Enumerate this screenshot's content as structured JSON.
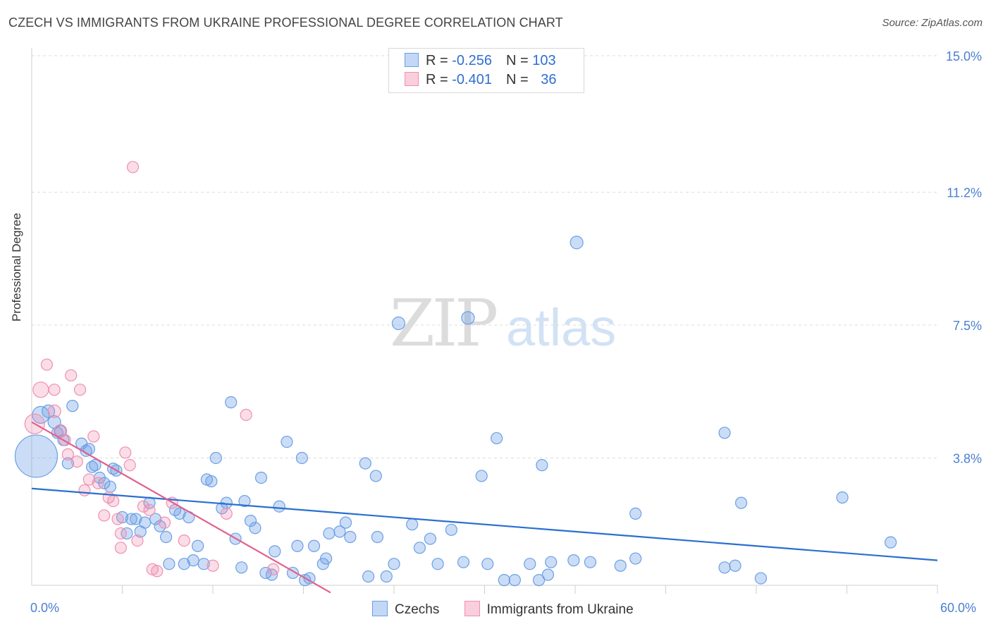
{
  "title": "CZECH VS IMMIGRANTS FROM UKRAINE PROFESSIONAL DEGREE CORRELATION CHART",
  "source": "Source: ZipAtlas.com",
  "watermark": {
    "zip": "ZIP",
    "atlas": "atlas"
  },
  "legend": {
    "czechs": {
      "r_label": "R = ",
      "r_value": "-0.256",
      "n_label": "N = ",
      "n_value": "103"
    },
    "ukraine": {
      "r_label": "R = ",
      "r_value": "-0.401",
      "n_label": "N = ",
      "n_value": "36"
    }
  },
  "bottom_legend": {
    "czechs": "Czechs",
    "ukraine": "Immigrants from Ukraine"
  },
  "chart_data": {
    "type": "scatter",
    "title": "CZECH VS IMMIGRANTS FROM UKRAINE PROFESSIONAL DEGREE CORRELATION CHART",
    "xlabel": "",
    "ylabel": "Professional Degree",
    "xlim": [
      0,
      60
    ],
    "ylim": [
      0,
      15
    ],
    "x_tick_labels": [
      "0.0%",
      "60.0%"
    ],
    "y_ticks": [
      3.8,
      7.5,
      11.2,
      15.0
    ],
    "y_tick_labels": [
      "3.8%",
      "7.5%",
      "11.2%",
      "15.0%"
    ],
    "grid": "horizontal dashed",
    "legend_placement": "top-center",
    "colors": {
      "czechs": "#6a9fe6",
      "czechs_line": "#2a6fd0",
      "ukraine": "#f08fb0",
      "ukraine_line": "#e2608e"
    },
    "series": [
      {
        "name": "Czechs",
        "r": -0.256,
        "n": 103,
        "trend": {
          "x": [
            0,
            60
          ],
          "y": [
            2.95,
            0.95
          ]
        },
        "points": [
          [
            0.3,
            3.85,
            30
          ],
          [
            0.6,
            5.0,
            12
          ],
          [
            1.1,
            5.1,
            9
          ],
          [
            1.5,
            4.8,
            9
          ],
          [
            1.7,
            4.5,
            8
          ],
          [
            1.9,
            4.55,
            8
          ],
          [
            2.1,
            4.3,
            8
          ],
          [
            2.4,
            3.65,
            8
          ],
          [
            2.7,
            5.25,
            8
          ],
          [
            3.3,
            4.2,
            8
          ],
          [
            3.6,
            4.0,
            8
          ],
          [
            3.8,
            4.05,
            8
          ],
          [
            4.0,
            3.55,
            8
          ],
          [
            4.2,
            3.6,
            8
          ],
          [
            4.5,
            3.25,
            8
          ],
          [
            4.8,
            3.1,
            8
          ],
          [
            5.2,
            3.0,
            8
          ],
          [
            5.4,
            3.5,
            8
          ],
          [
            5.6,
            3.45,
            8
          ],
          [
            6.0,
            2.15,
            8
          ],
          [
            6.3,
            1.7,
            8
          ],
          [
            6.6,
            2.1,
            8
          ],
          [
            6.9,
            2.1,
            8
          ],
          [
            7.2,
            1.75,
            8
          ],
          [
            7.5,
            2.0,
            8
          ],
          [
            7.8,
            2.55,
            8
          ],
          [
            8.2,
            2.1,
            8
          ],
          [
            8.5,
            1.9,
            8
          ],
          [
            8.9,
            1.6,
            8
          ],
          [
            9.1,
            0.85,
            8
          ],
          [
            9.5,
            2.35,
            8
          ],
          [
            9.8,
            2.25,
            8
          ],
          [
            10.1,
            0.85,
            8
          ],
          [
            10.4,
            2.15,
            8
          ],
          [
            10.7,
            0.95,
            8
          ],
          [
            11.0,
            1.35,
            8
          ],
          [
            11.4,
            0.85,
            8
          ],
          [
            11.6,
            3.2,
            8
          ],
          [
            11.9,
            3.15,
            8
          ],
          [
            12.2,
            3.8,
            8
          ],
          [
            12.6,
            2.4,
            8
          ],
          [
            12.9,
            2.55,
            8
          ],
          [
            13.2,
            5.35,
            8
          ],
          [
            13.5,
            1.55,
            8
          ],
          [
            13.9,
            0.75,
            8
          ],
          [
            14.1,
            2.6,
            8
          ],
          [
            14.5,
            2.05,
            8
          ],
          [
            14.8,
            1.85,
            8
          ],
          [
            15.2,
            3.25,
            8
          ],
          [
            15.5,
            0.6,
            8
          ],
          [
            15.9,
            0.55,
            8
          ],
          [
            16.1,
            1.2,
            8
          ],
          [
            16.4,
            2.45,
            8
          ],
          [
            16.9,
            4.25,
            8
          ],
          [
            17.3,
            0.6,
            8
          ],
          [
            17.6,
            1.35,
            8
          ],
          [
            17.9,
            3.8,
            8
          ],
          [
            18.1,
            0.4,
            8
          ],
          [
            18.4,
            0.45,
            8
          ],
          [
            18.7,
            1.35,
            8
          ],
          [
            19.3,
            0.85,
            8
          ],
          [
            19.5,
            1.0,
            8
          ],
          [
            19.7,
            1.7,
            8
          ],
          [
            20.4,
            1.75,
            8
          ],
          [
            20.8,
            2.0,
            8
          ],
          [
            21.1,
            1.6,
            8
          ],
          [
            22.1,
            3.65,
            8
          ],
          [
            22.3,
            0.5,
            8
          ],
          [
            22.8,
            3.3,
            8
          ],
          [
            22.9,
            1.6,
            8
          ],
          [
            23.5,
            0.5,
            8
          ],
          [
            24.0,
            0.85,
            8
          ],
          [
            24.3,
            7.55,
            9
          ],
          [
            25.2,
            1.95,
            8
          ],
          [
            25.7,
            1.3,
            8
          ],
          [
            26.4,
            1.55,
            8
          ],
          [
            26.9,
            0.85,
            8
          ],
          [
            27.8,
            1.8,
            8
          ],
          [
            28.6,
            0.9,
            8
          ],
          [
            28.9,
            7.7,
            9
          ],
          [
            29.8,
            3.3,
            8
          ],
          [
            30.2,
            0.85,
            8
          ],
          [
            30.8,
            4.35,
            8
          ],
          [
            31.3,
            0.4,
            8
          ],
          [
            32.0,
            0.4,
            8
          ],
          [
            33.0,
            0.85,
            8
          ],
          [
            33.6,
            0.4,
            8
          ],
          [
            33.8,
            3.6,
            8
          ],
          [
            34.2,
            0.55,
            8
          ],
          [
            34.4,
            0.9,
            8
          ],
          [
            35.9,
            0.95,
            8
          ],
          [
            36.1,
            9.8,
            9
          ],
          [
            37.0,
            0.9,
            8
          ],
          [
            39.0,
            0.8,
            8
          ],
          [
            40.0,
            2.25,
            8
          ],
          [
            40.0,
            1.0,
            8
          ],
          [
            45.9,
            4.5,
            8
          ],
          [
            45.9,
            0.75,
            8
          ],
          [
            46.6,
            0.8,
            8
          ],
          [
            47.0,
            2.55,
            8
          ],
          [
            48.3,
            0.45,
            8
          ],
          [
            53.7,
            2.7,
            8
          ],
          [
            56.9,
            1.45,
            8
          ]
        ]
      },
      {
        "name": "Immigrants from Ukraine",
        "r": -0.401,
        "n": 36,
        "trend": {
          "x": [
            0,
            19.8
          ],
          "y": [
            4.8,
            0.05
          ]
        },
        "points": [
          [
            0.2,
            4.75,
            14
          ],
          [
            0.6,
            5.7,
            11
          ],
          [
            1.0,
            6.4,
            8
          ],
          [
            1.5,
            5.7,
            8
          ],
          [
            1.5,
            5.1,
            9
          ],
          [
            1.9,
            4.55,
            9
          ],
          [
            2.2,
            4.3,
            8
          ],
          [
            2.4,
            3.9,
            8
          ],
          [
            2.6,
            6.1,
            8
          ],
          [
            3.0,
            3.7,
            8
          ],
          [
            3.2,
            5.7,
            8
          ],
          [
            3.5,
            2.9,
            8
          ],
          [
            3.8,
            3.2,
            8
          ],
          [
            4.1,
            4.4,
            8
          ],
          [
            4.4,
            3.1,
            8
          ],
          [
            4.8,
            2.2,
            8
          ],
          [
            5.1,
            2.7,
            8
          ],
          [
            5.4,
            2.6,
            8
          ],
          [
            5.7,
            2.1,
            8
          ],
          [
            5.9,
            1.7,
            8
          ],
          [
            5.9,
            1.3,
            8
          ],
          [
            6.2,
            3.95,
            8
          ],
          [
            6.5,
            3.6,
            8
          ],
          [
            6.7,
            11.9,
            8
          ],
          [
            7.0,
            1.5,
            8
          ],
          [
            7.4,
            2.45,
            8
          ],
          [
            7.8,
            2.35,
            8
          ],
          [
            8.0,
            0.7,
            8
          ],
          [
            8.3,
            0.65,
            8
          ],
          [
            8.8,
            2.0,
            8
          ],
          [
            9.3,
            2.55,
            8
          ],
          [
            10.1,
            1.5,
            8
          ],
          [
            12.0,
            0.8,
            8
          ],
          [
            12.9,
            2.25,
            8
          ],
          [
            14.2,
            5.0,
            8
          ],
          [
            16.0,
            0.7,
            8
          ]
        ]
      }
    ]
  }
}
